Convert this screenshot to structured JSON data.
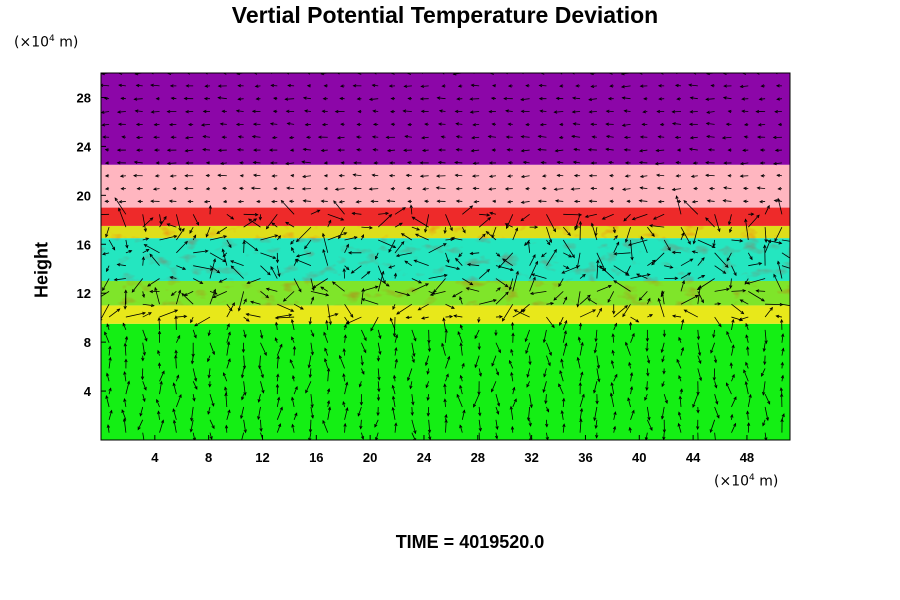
{
  "chart_data": {
    "type": "heatmap",
    "title": "Vertial Potential Temperature Deviation",
    "ylabel": "Height",
    "xlabel": "",
    "y_unit": {
      "prefix": "(×10",
      "exp": "4",
      "suffix": " m)"
    },
    "x_unit": {
      "prefix": "(×10",
      "exp": "4",
      "suffix": " m)"
    },
    "xlim": [
      0,
      51.2
    ],
    "ylim": [
      0,
      30
    ],
    "xticks": [
      4,
      8,
      12,
      16,
      20,
      24,
      28,
      32,
      36,
      40,
      44,
      48
    ],
    "yticks": [
      4,
      8,
      12,
      16,
      20,
      24,
      28
    ],
    "overlay": "wind vectors",
    "layers": [
      {
        "from": 0,
        "to": 9.5,
        "color": "#14ef14"
      },
      {
        "from": 9.5,
        "to": 11,
        "color": "#e8e81a"
      },
      {
        "from": 11,
        "to": 13,
        "color": "#7fe52a"
      },
      {
        "from": 13,
        "to": 16.5,
        "color": "#24e6c0"
      },
      {
        "from": 16.5,
        "to": 17.5,
        "color": "#dede1a"
      },
      {
        "from": 17.5,
        "to": 19,
        "color": "#ee2a2a"
      },
      {
        "from": 19,
        "to": 22.5,
        "color": "#ffb6c0"
      },
      {
        "from": 22.5,
        "to": 30,
        "color": "#8c06a8"
      }
    ]
  },
  "footer": {
    "time_label": "TIME = 4019520.0"
  }
}
